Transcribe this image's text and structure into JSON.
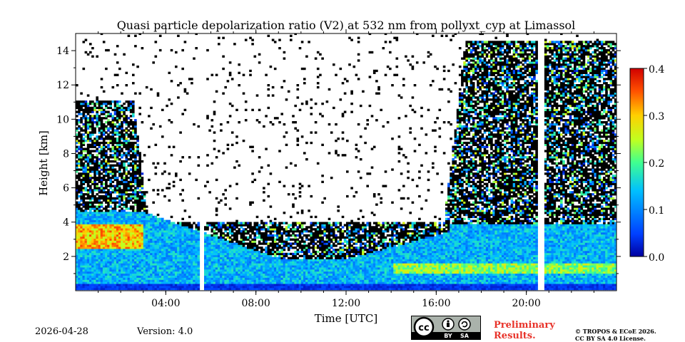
{
  "chart_data": {
    "type": "heatmap",
    "title": "Quasi particle depolarization ratio (V2) at 532 nm from pollyxt_cyp at Limassol",
    "xlabel": "Time [UTC]",
    "ylabel": "Height [km]",
    "xlim": [
      0,
      24
    ],
    "ylim": [
      0,
      15
    ],
    "x_ticks": [
      {
        "value": 4,
        "label": "04:00"
      },
      {
        "value": 8,
        "label": "08:00"
      },
      {
        "value": 12,
        "label": "12:00"
      },
      {
        "value": 16,
        "label": "16:00"
      },
      {
        "value": 20,
        "label": "20:00"
      }
    ],
    "y_ticks": [
      {
        "value": 2,
        "label": "2"
      },
      {
        "value": 4,
        "label": "4"
      },
      {
        "value": 6,
        "label": "6"
      },
      {
        "value": 8,
        "label": "8"
      },
      {
        "value": 10,
        "label": "10"
      },
      {
        "value": 12,
        "label": "12"
      },
      {
        "value": 14,
        "label": "14"
      }
    ],
    "colorbar": {
      "min": 0.0,
      "max": 0.4,
      "colormap": "jet",
      "ticks": [
        {
          "value": 0.0,
          "label": "0.0"
        },
        {
          "value": 0.1,
          "label": "0.1"
        },
        {
          "value": 0.2,
          "label": "0.2"
        },
        {
          "value": 0.3,
          "label": "0.3"
        },
        {
          "value": 0.4,
          "label": "0.4"
        }
      ]
    },
    "data_gaps_hours": [
      5.55,
      20.6
    ],
    "layers": [
      {
        "name": "boundary layer",
        "start_hour": 0,
        "end_hour": 24,
        "typical_value": 0.12
      },
      {
        "name": "elevated dust layer",
        "start_hour": 0,
        "end_hour": 3,
        "base_km": 2.5,
        "top_km": 3.8,
        "typical_value": 0.3
      },
      {
        "name": "noisy upper signal (night)",
        "start_hour": 0,
        "end_hour": 3,
        "top_km": 11,
        "typical_value": 0.1
      },
      {
        "name": "noisy upper signal (evening)",
        "start_hour": 17,
        "end_hour": 24,
        "top_km": 14.5,
        "typical_value": 0.1
      }
    ]
  },
  "footer": {
    "date": "2026-04-28",
    "version": "Version: 4.0",
    "license_badge": {
      "text_by": "BY",
      "text_sa": "SA"
    },
    "preliminary_line1": "Preliminary",
    "preliminary_line2": "Results.",
    "copyright_line1": "© TROPOS & ECoE 2026.",
    "copyright_line2": "CC BY SA 4.0 License."
  },
  "colors": {
    "prelim_red": "#e8332a",
    "badge_gray": "#aab2ab"
  }
}
